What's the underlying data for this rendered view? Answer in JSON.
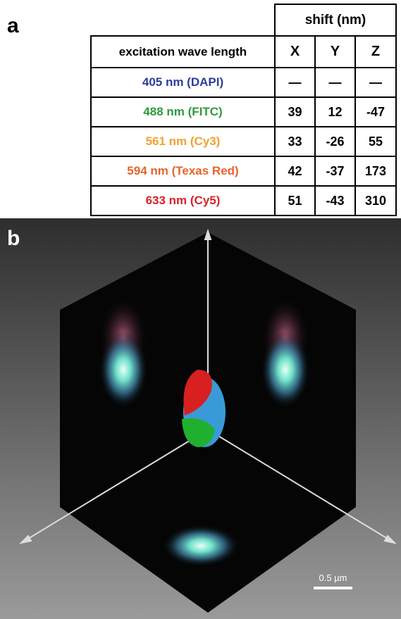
{
  "panel_a": {
    "label": "a",
    "table": {
      "group_header": "shift (nm)",
      "columns": [
        "excitation wave length",
        "X",
        "Y",
        "Z"
      ],
      "rows": [
        {
          "label": "405 nm (DAPI)",
          "color": "#2e3d9c",
          "cells": [
            "—",
            "—",
            "—"
          ]
        },
        {
          "label": "488 nm (FITC)",
          "color": "#2e9a3a",
          "cells": [
            39,
            12,
            -47
          ]
        },
        {
          "label": "561 nm (Cy3)",
          "color": "#f0a030",
          "cells": [
            33,
            -26,
            55
          ]
        },
        {
          "label": "594 nm (Texas Red)",
          "color": "#e8632a",
          "cells": [
            42,
            -37,
            173
          ]
        },
        {
          "label": "633 nm (Cy5)",
          "color": "#d8232a",
          "cells": [
            51,
            -43,
            310
          ]
        }
      ]
    }
  },
  "panel_b": {
    "label": "b",
    "scale_bar": "0.5 µm"
  }
}
